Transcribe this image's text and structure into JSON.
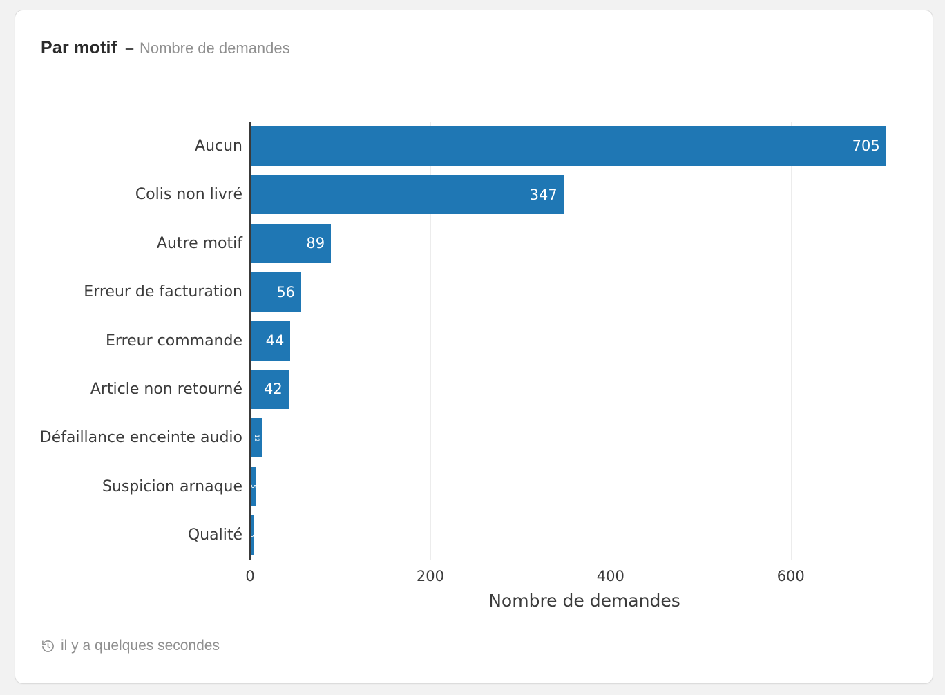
{
  "card": {
    "title": "Par motif",
    "separator": "–",
    "subtitle": "Nombre de demandes",
    "last_updated": "il y a quelques secondes"
  },
  "chart_data": {
    "type": "bar",
    "orientation": "horizontal",
    "title": "Par motif – Nombre de demandes",
    "categories": [
      "Aucun",
      "Colis non livré",
      "Autre motif",
      "Erreur de facturation",
      "Erreur commande",
      "Article non retourné",
      "Défaillance enceinte audio",
      "Suspicion arnaque",
      "Qualité"
    ],
    "values": [
      705,
      347,
      89,
      56,
      44,
      42,
      12,
      5,
      3
    ],
    "xlabel": "Nombre de demandes",
    "xticks": [
      0,
      200,
      400,
      600
    ],
    "xlim": [
      0,
      742
    ],
    "grid": true,
    "legend": false,
    "bar_color": "#1f77b4",
    "value_label_color": "#ffffff",
    "icons": {
      "footer": "history-clock-icon"
    }
  }
}
